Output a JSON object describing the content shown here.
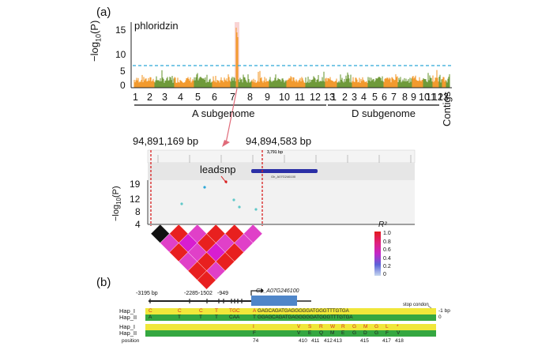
{
  "panel_a": {
    "label": "(a)",
    "trait": "phloridzin",
    "ylabel_main": "−log",
    "ylabel_sub": "10",
    "ylabel_tail": "(P)",
    "yticks": [
      "15",
      "10",
      "5",
      "0"
    ],
    "colors": {
      "orange": "#f29a2e",
      "green": "#6f9a3a",
      "threshold": "#2ca7d8",
      "highlight": "#f4a6a6"
    },
    "chromosomes_a": [
      "1",
      "2",
      "3",
      "4",
      "5",
      "6",
      "7",
      "8",
      "9",
      "10",
      "11",
      "12",
      "13"
    ],
    "chromosomes_d": [
      "1",
      "2",
      "3",
      "4",
      "5",
      "6",
      "7",
      "8",
      "9",
      "10",
      "11",
      "12",
      "13"
    ],
    "a_subgenome": "A subgenome",
    "d_subgenome": "D subgenome",
    "contigs": "Contigs"
  },
  "zoom": {
    "left_bp": "94,891,169 bp",
    "right_bp": "94,894,583 bp",
    "leadsnp": "leadsnp",
    "track_scale": "3,791 bp",
    "gene_track_label": "Gh_A07G246100",
    "ylabel_main": "−log",
    "ylabel_sub": "10",
    "ylabel_tail": "(P)",
    "yticks": [
      "19",
      "12",
      "8",
      "4"
    ],
    "r2_title": "R²",
    "r2_ticks": [
      "1.0",
      "0.8",
      "0.6",
      "0.4",
      "0.2",
      "0"
    ]
  },
  "panel_b": {
    "label": "(b)",
    "positions": [
      "-3195 bp",
      "-2285",
      "-1502",
      "-949"
    ],
    "gene": "Gh_A07G246100",
    "stop_codon": "stop condon",
    "rows": [
      {
        "name": "Hap_I",
        "alleles": [
          "C",
          "C",
          "C",
          "T",
          "TGC",
          "A"
        ],
        "seq": "GAGCAGATGAGGGGGATGGGTTTGTGA",
        "tail": "-1 bp"
      },
      {
        "name": "Hap_II",
        "alleles": [
          "A",
          "T",
          "T",
          "T",
          "CAA",
          "T"
        ],
        "seq": "GGAGCAGATGAGGGGGATGGGTTTGTGA",
        "tail": "0"
      },
      {
        "name": "Hap_I",
        "aa": [
          "I",
          "V",
          "S",
          "R",
          "W",
          "R",
          "G",
          "M",
          "G",
          "L",
          "*"
        ]
      },
      {
        "name": "Hap_II",
        "aa": [
          "F",
          "V",
          "E",
          "Q",
          "M",
          "E",
          "G",
          "D",
          "G",
          "F",
          "V"
        ]
      }
    ],
    "position_label": "position",
    "position_values": [
      "74",
      "410",
      "411",
      "412",
      "413",
      "415",
      "417",
      "418"
    ]
  }
}
